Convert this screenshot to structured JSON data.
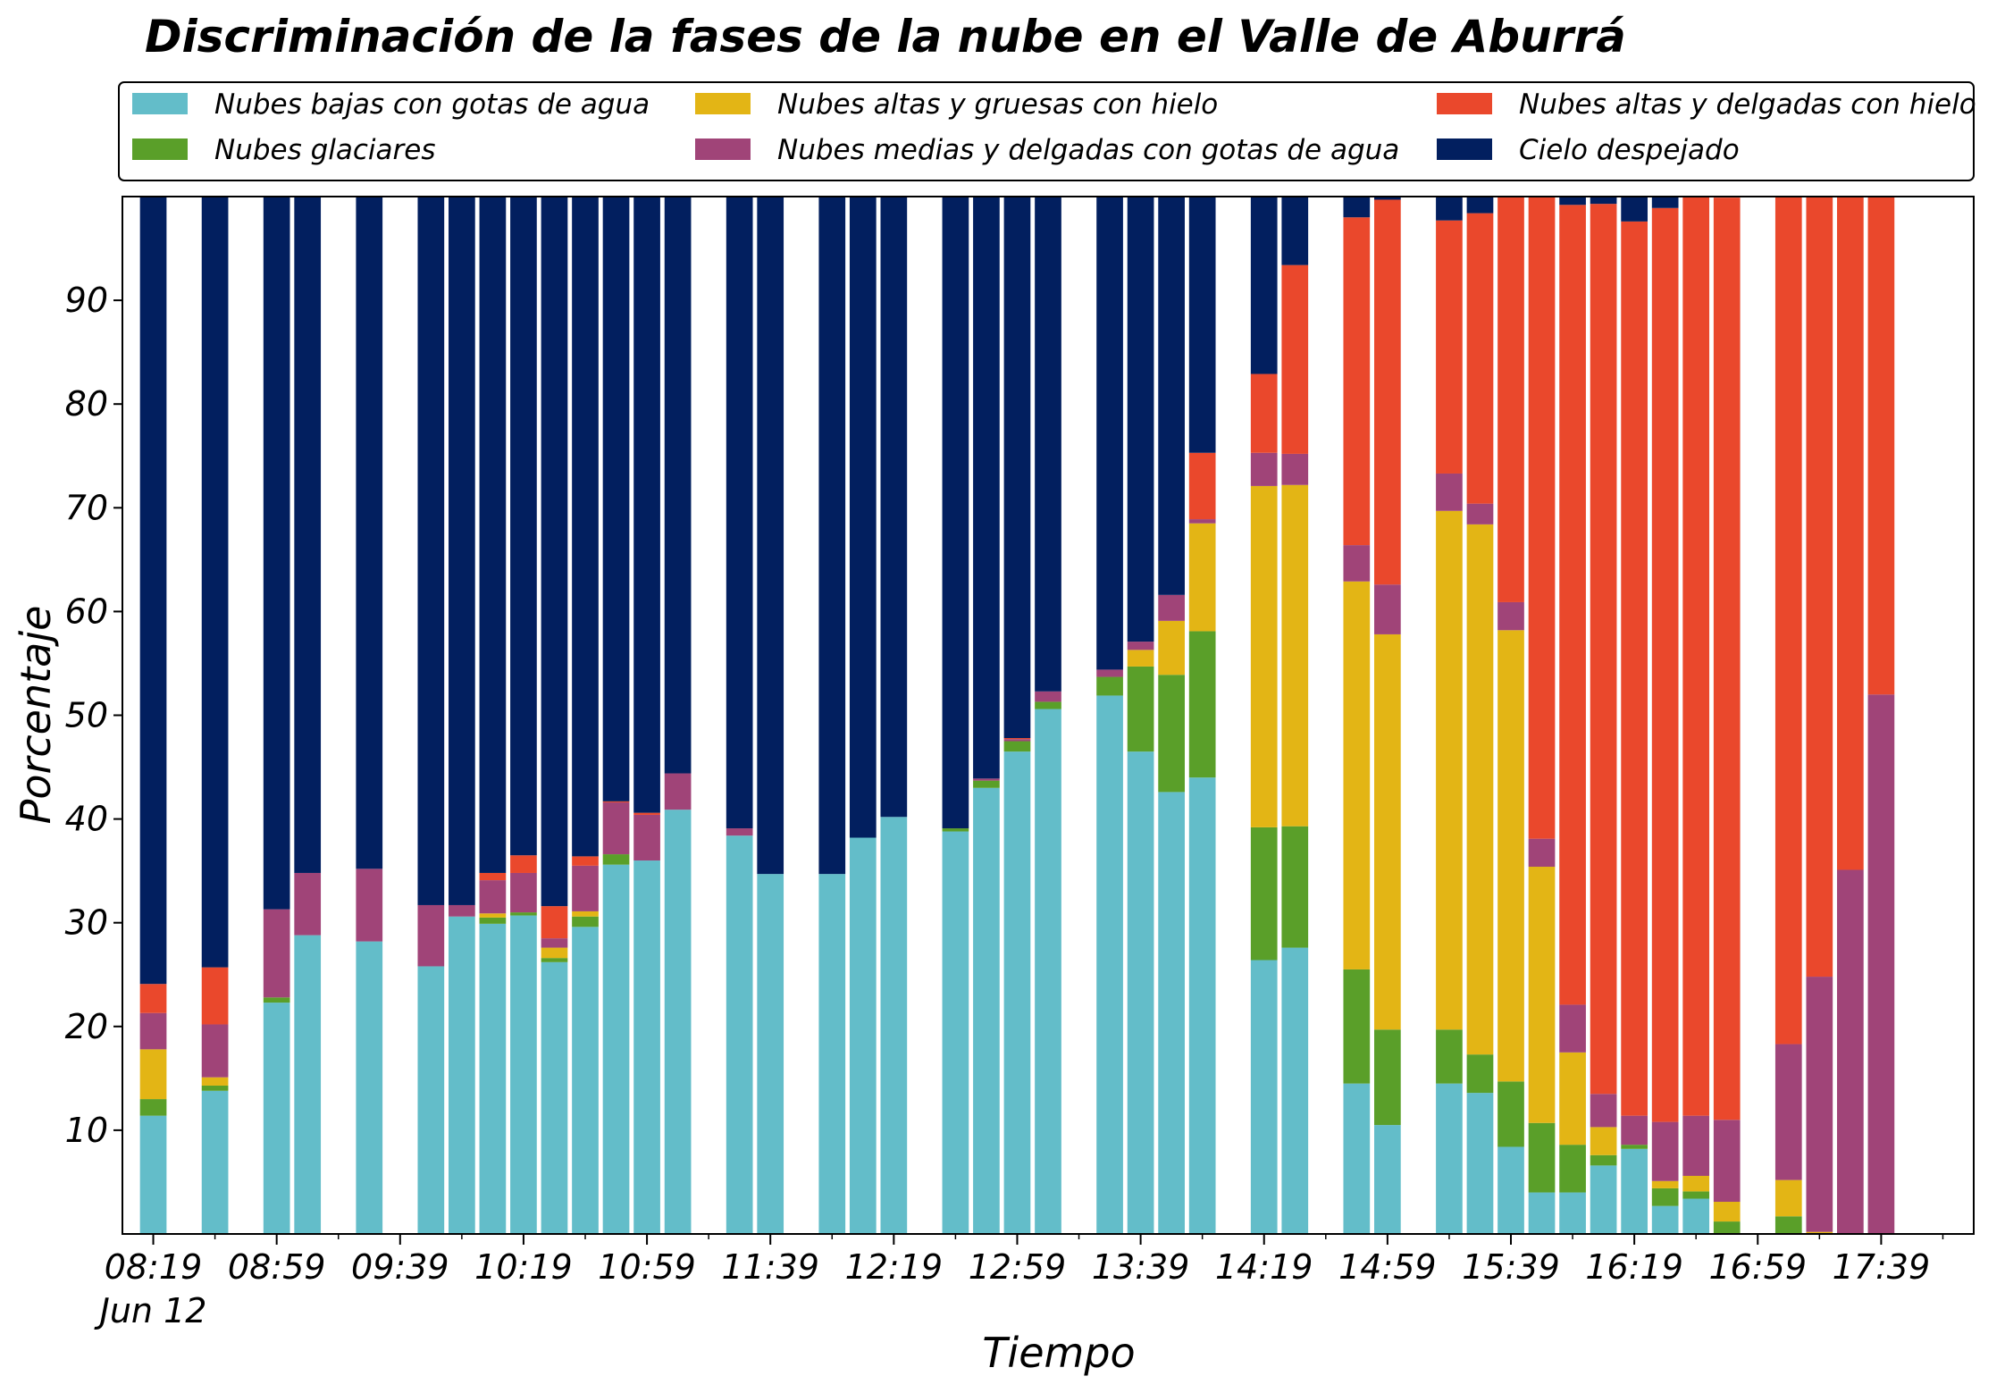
{
  "chart_data": {
    "type": "bar",
    "stacked": true,
    "title": "Discriminación de la fases de la nube en el Valle de Aburrá",
    "xlabel": "Tiempo",
    "ylabel": "Porcentaje",
    "ylim": [
      0,
      100
    ],
    "yticks": [
      10,
      20,
      30,
      40,
      50,
      60,
      70,
      80,
      90
    ],
    "xlim": [
      "08:09",
      "18:09"
    ],
    "x_major_ticks": [
      "08:19",
      "08:59",
      "09:39",
      "10:19",
      "10:59",
      "11:39",
      "12:19",
      "12:59",
      "13:39",
      "14:19",
      "14:59",
      "15:39",
      "16:19",
      "16:59",
      "17:39"
    ],
    "x_minor_ticks": [
      "08:39",
      "09:19",
      "09:59",
      "10:39",
      "11:19",
      "11:59",
      "12:39",
      "13:19",
      "13:59",
      "14:39",
      "15:19",
      "15:59",
      "16:39",
      "17:19",
      "17:59"
    ],
    "x_date_label": "Jun 12",
    "bar_interval_minutes": 10,
    "legend_position": "top",
    "grid": false,
    "times": [
      "08:19",
      "08:39",
      "08:59",
      "09:09",
      "09:29",
      "09:49",
      "09:59",
      "10:09",
      "10:19",
      "10:29",
      "10:39",
      "10:49",
      "10:59",
      "11:09",
      "11:29",
      "11:39",
      "11:59",
      "12:09",
      "12:19",
      "12:39",
      "12:49",
      "12:59",
      "13:09",
      "13:29",
      "13:39",
      "13:49",
      "13:59",
      "14:19",
      "14:29",
      "14:49",
      "14:59",
      "15:19",
      "15:29",
      "15:39",
      "15:49",
      "15:59",
      "16:09",
      "16:19",
      "16:29",
      "16:39",
      "16:49",
      "17:09",
      "17:19",
      "17:29",
      "17:39",
      "17:49"
    ],
    "series": [
      {
        "name": "Nubes bajas con gotas de agua",
        "color": "#63bdc9",
        "values": [
          11.4,
          13.8,
          22.3,
          28.8,
          28.2,
          25.8,
          30.6,
          29.9,
          30.7,
          26.2,
          29.6,
          35.6,
          36.0,
          40.9,
          38.4,
          34.7,
          34.7,
          38.2,
          40.2,
          38.8,
          43.0,
          46.5,
          50.6,
          51.9,
          46.5,
          42.6,
          44.0,
          26.4,
          27.6,
          14.5,
          10.5,
          14.5,
          13.6,
          8.4,
          4.0,
          4.0,
          6.6,
          8.2,
          2.7,
          3.4,
          0,
          0,
          0,
          0,
          0,
          0
        ]
      },
      {
        "name": "Nubes glaciares",
        "color": "#5a9f29",
        "values": [
          1.6,
          0.5,
          0.5,
          0,
          0,
          0,
          0,
          0.6,
          0.3,
          0.4,
          1.0,
          1.0,
          0,
          0,
          0,
          0,
          0,
          0,
          0,
          0.3,
          0.7,
          1.0,
          0.7,
          1.8,
          8.2,
          11.3,
          14.1,
          12.8,
          11.7,
          11.0,
          9.2,
          5.2,
          3.7,
          6.3,
          6.7,
          4.6,
          1.0,
          0.4,
          1.7,
          0.7,
          1.2,
          1.7,
          0,
          0,
          0,
          0
        ]
      },
      {
        "name": "Nubes altas y gruesas con hielo",
        "color": "#e3b515",
        "values": [
          4.8,
          0.8,
          0,
          0,
          0,
          0,
          0,
          0.4,
          0,
          1.0,
          0.5,
          0,
          0,
          0,
          0,
          0,
          0,
          0,
          0,
          0,
          0,
          0,
          0,
          0,
          1.6,
          5.2,
          10.4,
          32.9,
          32.9,
          37.4,
          38.1,
          50.0,
          51.1,
          43.5,
          24.7,
          8.9,
          2.7,
          0,
          0.7,
          1.5,
          1.9,
          3.5,
          0.2,
          0,
          0,
          0
        ]
      },
      {
        "name": "Nubes medias y delgadas con gotas de agua",
        "color": "#a04478",
        "values": [
          3.5,
          5.1,
          8.5,
          6.0,
          7.0,
          5.9,
          1.1,
          3.2,
          3.8,
          0.9,
          4.4,
          5.0,
          4.4,
          3.5,
          0.7,
          0,
          0,
          0,
          0,
          0,
          0.2,
          0.2,
          1.0,
          0.7,
          0.8,
          2.5,
          0.4,
          3.2,
          3.0,
          3.5,
          4.8,
          3.6,
          2.0,
          2.7,
          2.7,
          4.6,
          3.2,
          2.8,
          5.7,
          5.8,
          7.9,
          13.1,
          24.6,
          35.1,
          52.0,
          0
        ]
      },
      {
        "name": "Nubes altas y delgadas con hielo",
        "color": "#ea482c",
        "values": [
          2.8,
          5.5,
          0,
          0,
          0,
          0,
          0,
          0.7,
          1.7,
          3.1,
          0.9,
          0.1,
          0.2,
          0,
          0,
          0,
          0,
          0,
          0,
          0,
          0,
          0.1,
          0,
          0,
          0,
          0,
          6.4,
          7.6,
          18.2,
          31.6,
          37.1,
          24.4,
          28.0,
          39.3,
          61.9,
          77.1,
          85.8,
          86.2,
          88.1,
          88.6,
          88.9,
          81.7,
          75.2,
          64.9,
          48.0,
          0
        ]
      },
      {
        "name": "Cielo despejado",
        "color": "#021f5f",
        "values": [
          75.9,
          74.3,
          68.7,
          65.2,
          64.8,
          68.3,
          68.3,
          65.2,
          63.5,
          68.4,
          63.6,
          58.3,
          59.4,
          55.6,
          60.9,
          65.3,
          65.3,
          61.8,
          59.8,
          60.9,
          56.1,
          52.2,
          47.7,
          45.6,
          42.9,
          38.4,
          24.7,
          17.1,
          6.6,
          2.0,
          0.3,
          2.3,
          1.6,
          0,
          0,
          0.8,
          0.8,
          2.4,
          1.1,
          0,
          0,
          0,
          0,
          0,
          0,
          0
        ]
      }
    ]
  }
}
